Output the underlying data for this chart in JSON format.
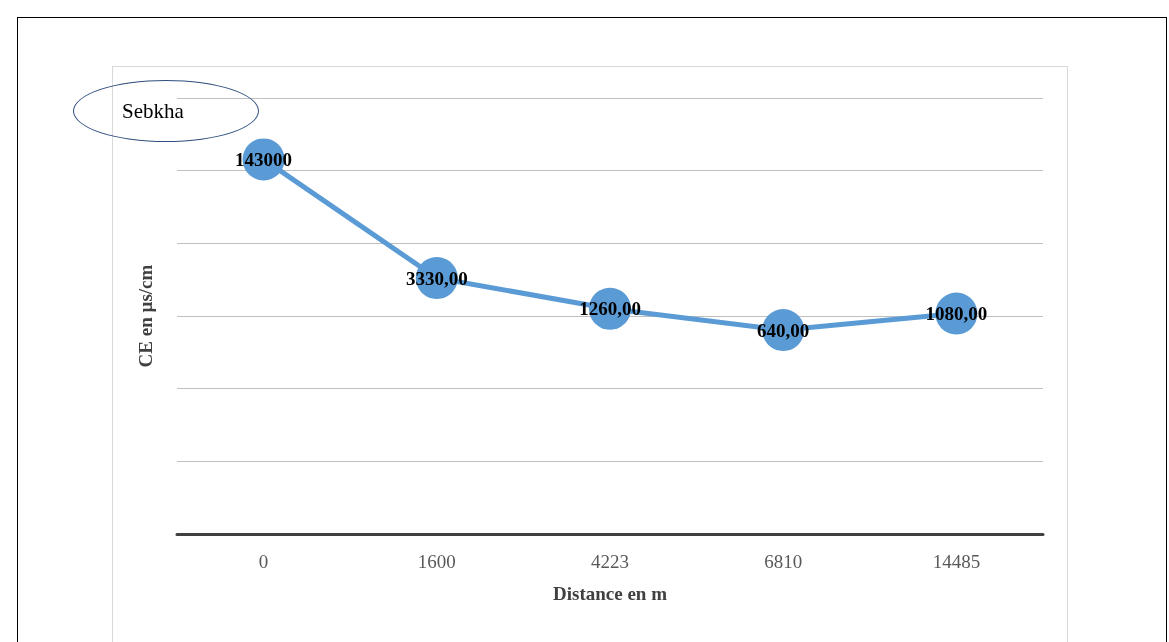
{
  "chart_data": {
    "type": "line",
    "xlabel": "Distance en m",
    "ylabel": "CE en µs/cm",
    "annotations": [
      "Sebkha"
    ],
    "categories": [
      "0",
      "1600",
      "4223",
      "6810",
      "14485"
    ],
    "series": [
      {
        "color": "#5b9bd5",
        "values": [
          143000,
          3330,
          1260,
          640,
          1080
        ],
        "value_labels": [
          "143000",
          "3330,00",
          "1260,00",
          "640,00",
          "1080,00"
        ]
      }
    ],
    "log": "y",
    "ylim": [
      1,
      1000000
    ],
    "yticks": [
      {
        "value": 1,
        "label": null
      },
      {
        "value": 10,
        "label": null
      },
      {
        "value": 100,
        "label": null
      },
      {
        "value": 1000,
        "label": null
      },
      {
        "value": 10000,
        "label": null
      },
      {
        "value": 100000,
        "label": null
      },
      {
        "value": 1000000,
        "label": null
      }
    ],
    "tick_labels": "x",
    "grid": "y",
    "marker": "circle",
    "line_style": "solid"
  }
}
